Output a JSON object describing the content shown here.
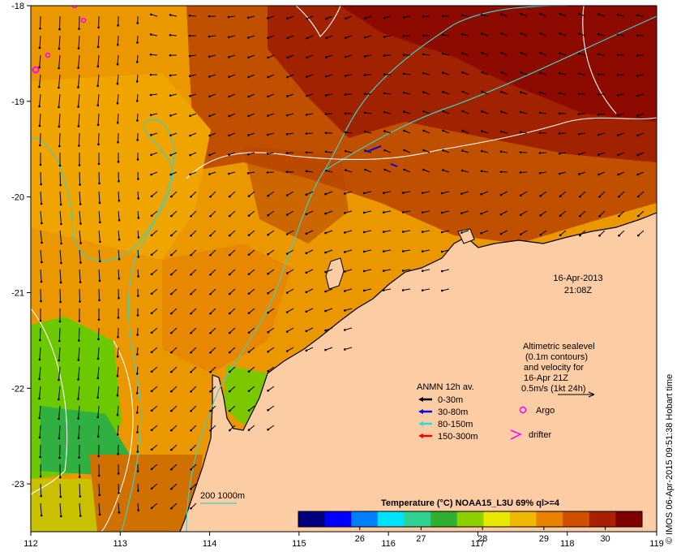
{
  "map": {
    "lon_range": [
      112,
      119
    ],
    "lat_range": [
      -23.5,
      -18
    ],
    "lon_ticks": [
      "112",
      "113",
      "114",
      "115",
      "116",
      "117",
      "118",
      "119"
    ],
    "lat_ticks": [
      "-18",
      "-19",
      "-20",
      "-21",
      "-22",
      "-23"
    ]
  },
  "annotations": {
    "date": "16-Apr-2013",
    "time": "21:08Z",
    "altimetry_line1": "Altimetric sealevel",
    "altimetry_line2": "(0.1m contours)",
    "altimetry_line3": "and velocity for",
    "altimetry_line4": "16-Apr 21Z",
    "altimetry_line5": "0.5m/s (1kt 24h)",
    "argo_label": "Argo",
    "drifter_label": "drifter",
    "isobath_label": "200  1000m",
    "credit": "© IMOS 06-Apr-2015 09:51:38 Hobart time"
  },
  "legend": {
    "title": "ANMN 12h av.",
    "items": [
      {
        "label": "0-30m",
        "color": "#000000"
      },
      {
        "label": "30-80m",
        "color": "#0000ee"
      },
      {
        "label": "80-150m",
        "color": "#22e0e0"
      },
      {
        "label": "150-300m",
        "color": "#ee0000"
      }
    ]
  },
  "colorbar": {
    "title": "Temperature (°C) NOAA15_L3U 69% ql>=4",
    "range": [
      25,
      30.6
    ],
    "ticks": [
      "26",
      "27",
      "28",
      "29",
      "30"
    ],
    "colors": [
      "#00007f",
      "#0000ff",
      "#007fff",
      "#00e0ff",
      "#30d090",
      "#30b030",
      "#8cd000",
      "#e8e800",
      "#f0b800",
      "#e88000",
      "#d05000",
      "#a82000",
      "#800000"
    ]
  },
  "colors": {
    "land": "#fccca4",
    "isobath": "#40d0c0",
    "sealevel_contour": "#ffffff",
    "argo": "#ff00ff"
  }
}
